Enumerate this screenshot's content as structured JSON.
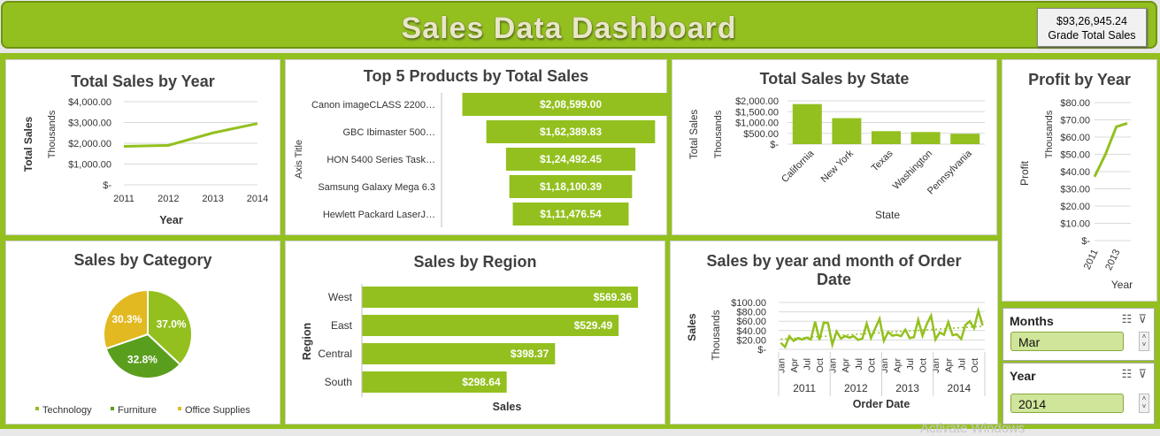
{
  "header": {
    "title": "Sales Data Dashboard",
    "total_value": "$93,26,945.24",
    "total_label": "Grade Total Sales"
  },
  "panels": {
    "year": "Total Sales  by Year",
    "products": "Top 5 Products by Total Sales",
    "state": "Total Sales by State",
    "profit": "Profit by Year",
    "category": "Sales by Category",
    "region": "Sales by Region",
    "monthly": "Sales by year and month of Order Date"
  },
  "slicers": {
    "months_label": "Months",
    "months_value": "Mar",
    "year_label": "Year",
    "year_value": "2014"
  },
  "colors": {
    "green": "#93c01f",
    "dark_green": "#5a9e1e",
    "yellow": "#e2b921"
  },
  "watermark": "Activate Windows",
  "chart_data": [
    {
      "id": "sales_by_year",
      "type": "line",
      "title": "Total Sales  by Year",
      "xlabel": "Year",
      "ylabel": "Total Sales",
      "units_label": "Thousands",
      "categories": [
        "2011",
        "2012",
        "2013",
        "2014"
      ],
      "values": [
        1850,
        1900,
        2500,
        2950
      ],
      "ylim": [
        0,
        4000
      ],
      "yticks": [
        "$-",
        "$1,000.00",
        "$2,000.00",
        "$3,000.00",
        "$4,000.00"
      ]
    },
    {
      "id": "top_products",
      "type": "bar",
      "title": "Top 5 Products by Total Sales",
      "ylabel": "Axis Title",
      "categories": [
        "Canon imageCLASS 2200…",
        "GBC Ibimaster 500…",
        "HON 5400 Series Task…",
        "Samsung Galaxy Mega 6.3",
        "Hewlett Packard LaserJ…"
      ],
      "values": [
        208599.0,
        162389.83,
        124492.45,
        118100.39,
        111476.54
      ],
      "labels": [
        "$2,08,599.00",
        "$1,62,389.83",
        "$1,24,492.45",
        "$1,18,100.39",
        "$1,11,476.54"
      ]
    },
    {
      "id": "sales_by_state",
      "type": "bar",
      "title": "Total Sales by State",
      "xlabel": "State",
      "ylabel": "Total Sales",
      "units_label": "Thousands",
      "categories": [
        "California",
        "New York",
        "Texas",
        "Washington",
        "Pennsylvania"
      ],
      "values": [
        1850,
        1200,
        600,
        560,
        480
      ],
      "ylim": [
        0,
        2000
      ],
      "yticks": [
        "$-",
        "$500.00",
        "$1,000.00",
        "$1,500.00",
        "$2,000.00"
      ]
    },
    {
      "id": "profit_by_year",
      "type": "line",
      "title": "Profit by Year",
      "xlabel": "Year",
      "ylabel": "Profit",
      "units_label": "Thousands",
      "categories": [
        "2011",
        "2012",
        "2013",
        "2014"
      ],
      "values": [
        37,
        50,
        66,
        68
      ],
      "ylim": [
        0,
        80
      ],
      "ytick_labels": [
        "$-",
        "$10.00",
        "$20.00",
        "$30.00",
        "$40.00",
        "$50.00",
        "$60.00",
        "$70.00",
        "$80.00"
      ],
      "xtick_labels": [
        "2011",
        "2013"
      ]
    },
    {
      "id": "sales_by_category",
      "type": "pie",
      "title": "Sales by Category",
      "categories": [
        "Technology",
        "Furniture",
        "Office Supplies"
      ],
      "values": [
        37.0,
        32.8,
        30.3
      ],
      "labels": [
        "37.0%",
        "32.8%",
        "30.3%"
      ],
      "colors": [
        "#93c01f",
        "#5a9e1e",
        "#e2b921"
      ]
    },
    {
      "id": "sales_by_region",
      "type": "bar",
      "title": "Sales by Region",
      "xlabel": "Sales",
      "ylabel": "Region",
      "categories": [
        "West",
        "East",
        "Central",
        "South"
      ],
      "values": [
        569.36,
        529.49,
        398.37,
        298.64
      ],
      "labels": [
        "$569.36",
        "$529.49",
        "$398.37",
        "$298.64"
      ]
    },
    {
      "id": "sales_by_month",
      "type": "line",
      "title": "Sales by year and month of Order Date",
      "xlabel": "Order Date",
      "ylabel": "Sales",
      "units_label": "Thousands",
      "ylim": [
        0,
        100
      ],
      "yticks": [
        "$-",
        "$20.00",
        "$40.00",
        "$60.00",
        "$80.00",
        "$100.00"
      ],
      "years": [
        "2011",
        "2012",
        "2013",
        "2014"
      ],
      "month_labels": [
        "Jan",
        "Apr",
        "Jul",
        "Oct"
      ],
      "values": [
        14,
        5,
        28,
        18,
        24,
        21,
        25,
        21,
        59,
        20,
        57,
        56,
        10,
        38,
        23,
        28,
        25,
        28,
        20,
        23,
        55,
        24,
        45,
        65,
        18,
        37,
        29,
        31,
        28,
        42,
        24,
        26,
        63,
        29,
        54,
        72,
        21,
        36,
        31,
        58,
        30,
        32,
        22,
        52,
        60,
        45,
        82,
        51
      ],
      "trendline": true
    }
  ]
}
